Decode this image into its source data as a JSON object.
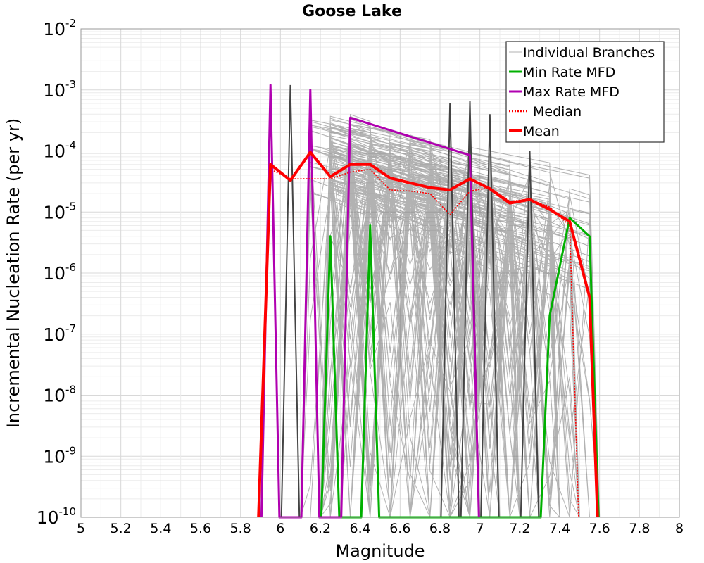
{
  "chart_data": {
    "type": "line",
    "title": "Goose Lake",
    "xlabel": "Magnitude",
    "ylabel": "Incremental Nucleation Rate (per yr)",
    "xlim": [
      5,
      8
    ],
    "ylim": [
      1e-10,
      0.01
    ],
    "yscale": "log",
    "grid": true,
    "x_ticks": [
      5,
      5.2,
      5.4,
      5.6,
      5.8,
      6,
      6.2,
      6.4,
      6.6,
      6.8,
      7,
      7.2,
      7.4,
      7.6,
      7.8,
      8
    ],
    "x_tick_labels": [
      "5",
      "5.2",
      "5.4",
      "5.6",
      "5.8",
      "6",
      "6.2",
      "6.4",
      "6.6",
      "6.8",
      "7",
      "7.2",
      "7.4",
      "7.6",
      "7.8",
      "8"
    ],
    "y_ticks": [
      {
        "value": 1e-10,
        "base": "10",
        "exp": "-10"
      },
      {
        "value": 1e-09,
        "base": "10",
        "exp": "-9"
      },
      {
        "value": 1e-08,
        "base": "10",
        "exp": "-8"
      },
      {
        "value": 1e-07,
        "base": "10",
        "exp": "-7"
      },
      {
        "value": 1e-06,
        "base": "10",
        "exp": "-6"
      },
      {
        "value": 1e-05,
        "base": "10",
        "exp": "-5"
      },
      {
        "value": 0.0001,
        "base": "10",
        "exp": "-4"
      },
      {
        "value": 0.001,
        "base": "10",
        "exp": "-3"
      },
      {
        "value": 0.01,
        "base": "10",
        "exp": "-2"
      }
    ],
    "legend_position": "top-right",
    "legend": [
      {
        "label": "Individual Branches",
        "color": "#b0b0b0",
        "style": "solid-thin"
      },
      {
        "label": "Min Rate MFD",
        "color": "#00b000",
        "style": "solid"
      },
      {
        "label": "Max Rate MFD",
        "color": "#b000b0",
        "style": "solid"
      },
      {
        "label": "Median",
        "color": "#ff0000",
        "style": "dotted"
      },
      {
        "label": "Mean",
        "color": "#ff0000",
        "style": "solid-thick"
      }
    ],
    "series": [
      {
        "name": "Min Rate MFD",
        "color": "#00b000",
        "x": [
          6.205,
          6.25,
          6.295,
          6.405,
          6.45,
          6.495,
          7.305,
          7.35,
          7.45,
          7.55,
          7.595
        ],
        "y": [
          1e-10,
          4e-06,
          1e-10,
          1e-10,
          6e-06,
          1e-10,
          1e-10,
          2e-07,
          8e-06,
          4e-06,
          1e-10
        ]
      },
      {
        "name": "Max Rate MFD",
        "color": "#b000b0",
        "x": [
          5.905,
          5.95,
          5.995,
          6.105,
          6.15,
          6.195,
          6.305,
          6.35,
          6.95,
          6.995
        ],
        "y": [
          1e-10,
          0.0012,
          1e-10,
          1e-10,
          0.001,
          1e-10,
          1e-10,
          0.00035,
          8.5e-05,
          1e-10
        ]
      },
      {
        "name": "Median",
        "color": "#ff0000",
        "x": [
          5.89,
          5.95,
          6.05,
          6.15,
          6.25,
          6.35,
          6.45,
          6.55,
          6.65,
          6.75,
          6.85,
          6.95,
          7.05,
          7.15,
          7.25,
          7.35,
          7.45,
          7.495
        ],
        "y": [
          1e-10,
          5e-05,
          3.5e-05,
          3.5e-05,
          3.5e-05,
          4.5e-05,
          5e-05,
          2.3e-05,
          2.2e-05,
          2e-05,
          9e-06,
          2.2e-05,
          2.5e-05,
          1.5e-05,
          1.6e-05,
          1.2e-05,
          6e-06,
          1e-10
        ]
      },
      {
        "name": "Mean",
        "color": "#ff0000",
        "x": [
          5.89,
          5.95,
          6.05,
          6.15,
          6.25,
          6.35,
          6.45,
          6.55,
          6.65,
          6.75,
          6.85,
          6.95,
          7.05,
          7.15,
          7.25,
          7.35,
          7.45,
          7.55,
          7.59
        ],
        "y": [
          1e-10,
          6e-05,
          3.3e-05,
          9.5e-05,
          3.8e-05,
          6e-05,
          6e-05,
          3.6e-05,
          3e-05,
          2.5e-05,
          2.3e-05,
          3.5e-05,
          2.4e-05,
          1.4e-05,
          1.6e-05,
          1.1e-05,
          7e-06,
          4e-07,
          1e-10
        ]
      }
    ]
  }
}
